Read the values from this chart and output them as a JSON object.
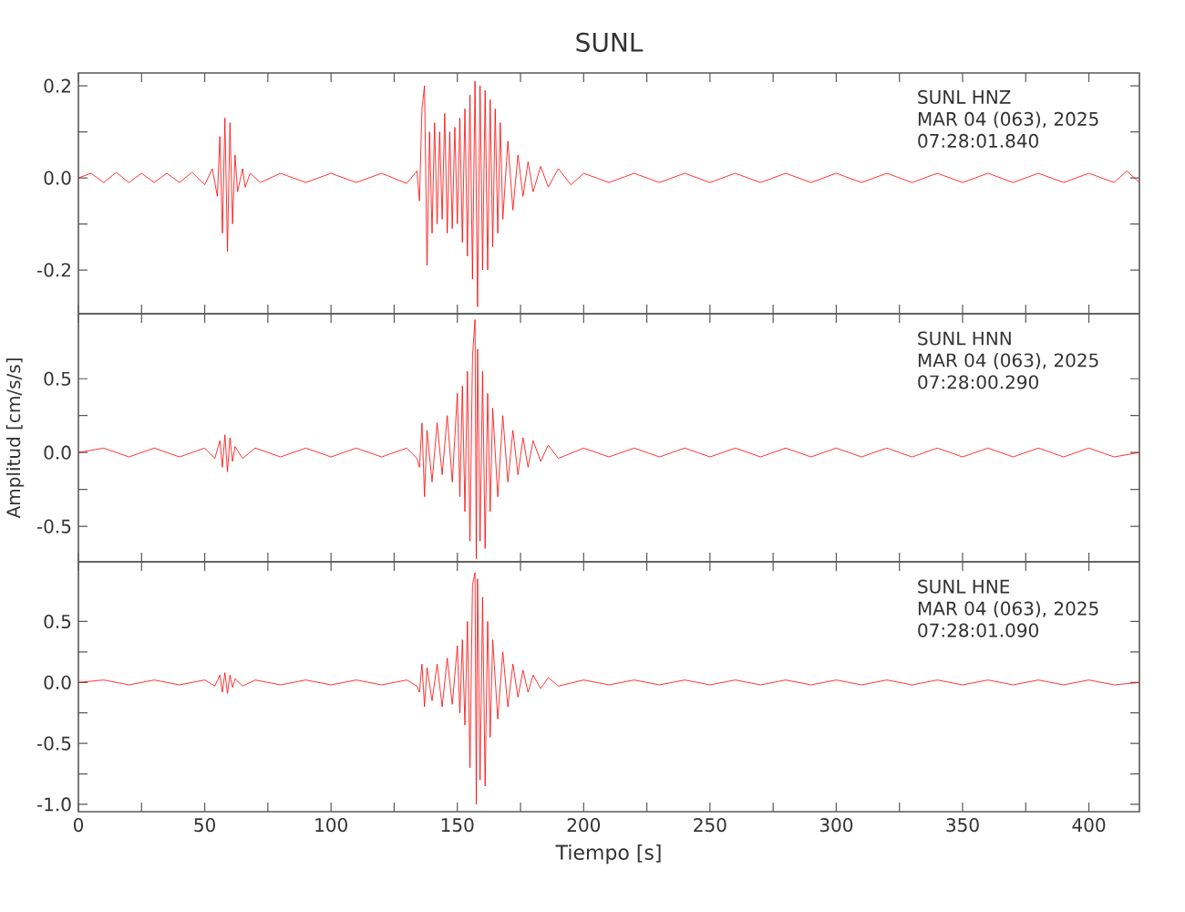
{
  "chart_data": [
    {
      "type": "line",
      "title": "SUNL",
      "annotations": [
        "SUNL HNZ",
        "MAR 04 (063), 2025",
        "07:28:01.840"
      ],
      "xlim": [
        0,
        420
      ],
      "ylim": [
        -0.295,
        0.228
      ],
      "tick_labels": "y",
      "xticks": [
        0,
        {
          "value": 25,
          "label": null
        },
        50,
        {
          "value": 75,
          "label": null
        },
        100,
        {
          "value": 125,
          "label": null
        },
        150,
        {
          "value": 175,
          "label": null
        },
        200,
        {
          "value": 225,
          "label": null
        },
        250,
        {
          "value": 275,
          "label": null
        },
        300,
        {
          "value": 325,
          "label": null
        },
        350,
        {
          "value": 375,
          "label": null
        },
        400
      ],
      "yticks": [
        -0.2,
        {
          "value": -0.1,
          "label": null
        },
        {
          "value": 0,
          "label": "0.0"
        },
        {
          "value": 0.1,
          "label": null
        },
        0.2
      ],
      "series": [
        {
          "color": "#ff0000",
          "x": [
            0,
            5,
            10,
            15,
            20,
            25,
            30,
            35,
            40,
            45,
            50,
            53,
            55,
            56,
            57,
            58,
            59,
            60,
            61,
            62,
            63,
            65,
            66,
            68,
            72,
            80,
            90,
            100,
            110,
            120,
            130,
            134,
            135,
            136,
            137,
            138,
            139,
            140,
            141,
            142,
            143,
            144,
            145,
            146,
            147,
            148,
            149,
            150,
            151,
            152,
            153,
            154,
            155,
            156,
            157,
            158,
            159,
            160,
            161,
            162,
            163,
            164,
            165,
            166,
            167,
            168,
            170,
            172,
            174,
            176,
            178,
            180,
            183,
            186,
            190,
            195,
            200,
            210,
            220,
            230,
            240,
            250,
            260,
            270,
            280,
            290,
            300,
            310,
            320,
            330,
            340,
            350,
            360,
            370,
            380,
            390,
            400,
            410,
            415,
            420
          ],
          "values": [
            0,
            0.01,
            -0.01,
            0.012,
            -0.01,
            0.01,
            -0.01,
            0.01,
            -0.01,
            0.012,
            -0.015,
            0.02,
            -0.04,
            0.09,
            -0.12,
            0.13,
            -0.16,
            0.12,
            -0.1,
            0.05,
            -0.03,
            0.02,
            -0.02,
            0.01,
            -0.01,
            0.01,
            -0.01,
            0.01,
            -0.01,
            0.01,
            -0.012,
            0.015,
            -0.05,
            0.15,
            0.2,
            -0.19,
            0.1,
            -0.12,
            0.12,
            -0.1,
            0.1,
            -0.09,
            0.14,
            -0.12,
            0.1,
            -0.11,
            0.11,
            -0.1,
            0.13,
            -0.14,
            0.15,
            -0.17,
            0.18,
            -0.22,
            0.21,
            -0.28,
            0.2,
            -0.2,
            0.19,
            -0.2,
            0.17,
            -0.15,
            0.15,
            -0.12,
            0.12,
            -0.09,
            0.08,
            -0.07,
            0.05,
            -0.04,
            0.035,
            -0.03,
            0.025,
            -0.02,
            0.02,
            -0.015,
            0.01,
            -0.01,
            0.01,
            -0.01,
            0.01,
            -0.01,
            0.01,
            -0.01,
            0.01,
            -0.01,
            0.01,
            -0.01,
            0.01,
            -0.01,
            0.01,
            -0.01,
            0.01,
            -0.01,
            0.01,
            -0.01,
            0.01,
            -0.01,
            0.015,
            -0.01
          ]
        }
      ]
    },
    {
      "type": "line",
      "ylabel": "Amplitud [cm/s/s]",
      "annotations": [
        "SUNL HNN",
        "MAR 04 (063), 2025",
        "07:28:00.290"
      ],
      "xlim": [
        0,
        420
      ],
      "ylim": [
        -0.74,
        0.94
      ],
      "tick_labels": "y",
      "xticks": [
        0,
        {
          "value": 25,
          "label": null
        },
        50,
        {
          "value": 75,
          "label": null
        },
        100,
        {
          "value": 125,
          "label": null
        },
        150,
        {
          "value": 175,
          "label": null
        },
        200,
        {
          "value": 225,
          "label": null
        },
        250,
        {
          "value": 275,
          "label": null
        },
        300,
        {
          "value": 325,
          "label": null
        },
        350,
        {
          "value": 375,
          "label": null
        },
        400
      ],
      "yticks": [
        -0.5,
        {
          "value": -0.25,
          "label": null
        },
        {
          "value": 0,
          "label": "0.0"
        },
        {
          "value": 0.25,
          "label": null
        },
        0.5
      ],
      "series": [
        {
          "color": "#ff0000",
          "x": [
            0,
            10,
            20,
            30,
            40,
            50,
            54,
            56,
            57,
            58,
            59,
            60,
            61,
            62,
            65,
            70,
            80,
            90,
            100,
            110,
            120,
            130,
            134,
            135,
            136,
            137,
            138,
            140,
            142,
            144,
            146,
            148,
            150,
            151,
            152,
            153,
            154,
            155,
            156,
            157,
            157.5,
            158,
            159,
            160,
            161,
            162,
            163,
            164,
            166,
            168,
            170,
            172,
            174,
            176,
            178,
            180,
            183,
            186,
            190,
            200,
            210,
            220,
            230,
            240,
            250,
            260,
            270,
            280,
            290,
            300,
            310,
            320,
            330,
            340,
            350,
            360,
            370,
            380,
            390,
            400,
            410,
            420
          ],
          "values": [
            0,
            0.03,
            -0.03,
            0.03,
            -0.03,
            0.03,
            -0.04,
            0.08,
            -0.1,
            0.12,
            -0.13,
            0.1,
            -0.06,
            0.04,
            -0.04,
            0.03,
            -0.03,
            0.03,
            -0.03,
            0.03,
            -0.03,
            0.03,
            -0.04,
            -0.1,
            0.2,
            -0.3,
            0.15,
            -0.2,
            0.2,
            -0.15,
            0.25,
            -0.2,
            0.4,
            -0.3,
            0.45,
            -0.4,
            0.55,
            -0.6,
            0.65,
            0.9,
            -0.72,
            0.7,
            -0.6,
            0.55,
            -0.65,
            0.4,
            -0.4,
            0.3,
            -0.3,
            0.25,
            -0.2,
            0.15,
            -0.15,
            0.1,
            -0.1,
            0.08,
            -0.06,
            0.05,
            -0.04,
            0.03,
            -0.03,
            0.03,
            -0.03,
            0.03,
            -0.03,
            0.03,
            -0.03,
            0.03,
            -0.03,
            0.03,
            -0.03,
            0.03,
            -0.03,
            0.03,
            -0.03,
            0.03,
            -0.03,
            0.03,
            -0.03,
            0.03,
            -0.03,
            0
          ]
        }
      ]
    },
    {
      "type": "line",
      "xlabel": "Tiempo [s]",
      "annotations": [
        "SUNL HNE",
        "MAR 04 (063), 2025",
        "07:28:01.090"
      ],
      "xlim": [
        0,
        420
      ],
      "ylim": [
        -1.06,
        0.99
      ],
      "xticks": [
        0,
        {
          "value": 25,
          "label": null
        },
        50,
        {
          "value": 75,
          "label": null
        },
        100,
        {
          "value": 125,
          "label": null
        },
        150,
        {
          "value": 175,
          "label": null
        },
        200,
        {
          "value": 225,
          "label": null
        },
        250,
        {
          "value": 275,
          "label": null
        },
        300,
        {
          "value": 325,
          "label": null
        },
        350,
        {
          "value": 375,
          "label": null
        },
        400
      ],
      "yticks": [
        {
          "value": -1,
          "label": "-1.0"
        },
        {
          "value": -0.75,
          "label": null
        },
        -0.5,
        {
          "value": -0.25,
          "label": null
        },
        {
          "value": 0,
          "label": "0.0"
        },
        {
          "value": 0.25,
          "label": null
        },
        0.5
      ],
      "series": [
        {
          "color": "#ff0000",
          "x": [
            0,
            10,
            20,
            30,
            40,
            50,
            54,
            56,
            57,
            58,
            59,
            60,
            61,
            62,
            65,
            70,
            80,
            90,
            100,
            110,
            120,
            130,
            134,
            135,
            136,
            137,
            138,
            140,
            142,
            144,
            146,
            148,
            150,
            151,
            152,
            153,
            154,
            155,
            156,
            157,
            157.5,
            158,
            159,
            160,
            161,
            162,
            163,
            164,
            166,
            168,
            170,
            172,
            174,
            176,
            178,
            180,
            183,
            186,
            190,
            200,
            210,
            220,
            230,
            240,
            250,
            260,
            270,
            280,
            290,
            300,
            310,
            320,
            330,
            340,
            350,
            360,
            370,
            380,
            390,
            400,
            410,
            420
          ],
          "values": [
            0,
            0.02,
            -0.02,
            0.02,
            -0.02,
            0.02,
            -0.03,
            0.06,
            -0.08,
            0.08,
            -0.09,
            0.06,
            -0.04,
            0.03,
            -0.03,
            0.02,
            -0.02,
            0.02,
            -0.02,
            0.02,
            -0.02,
            0.02,
            -0.03,
            -0.08,
            0.15,
            -0.2,
            0.12,
            -0.15,
            0.15,
            -0.2,
            0.2,
            -0.18,
            0.3,
            -0.25,
            0.35,
            -0.35,
            0.5,
            -0.7,
            0.8,
            0.9,
            -1.0,
            0.85,
            -0.8,
            0.7,
            -0.85,
            0.5,
            -0.45,
            0.35,
            -0.3,
            0.25,
            -0.2,
            0.15,
            -0.12,
            0.1,
            -0.08,
            0.06,
            -0.05,
            0.04,
            -0.03,
            0.02,
            -0.02,
            0.02,
            -0.02,
            0.02,
            -0.02,
            0.02,
            -0.02,
            0.02,
            -0.02,
            0.02,
            -0.02,
            0.02,
            -0.02,
            0.02,
            -0.02,
            0.02,
            -0.02,
            0.02,
            -0.02,
            0.02,
            -0.02,
            0
          ]
        }
      ]
    }
  ]
}
